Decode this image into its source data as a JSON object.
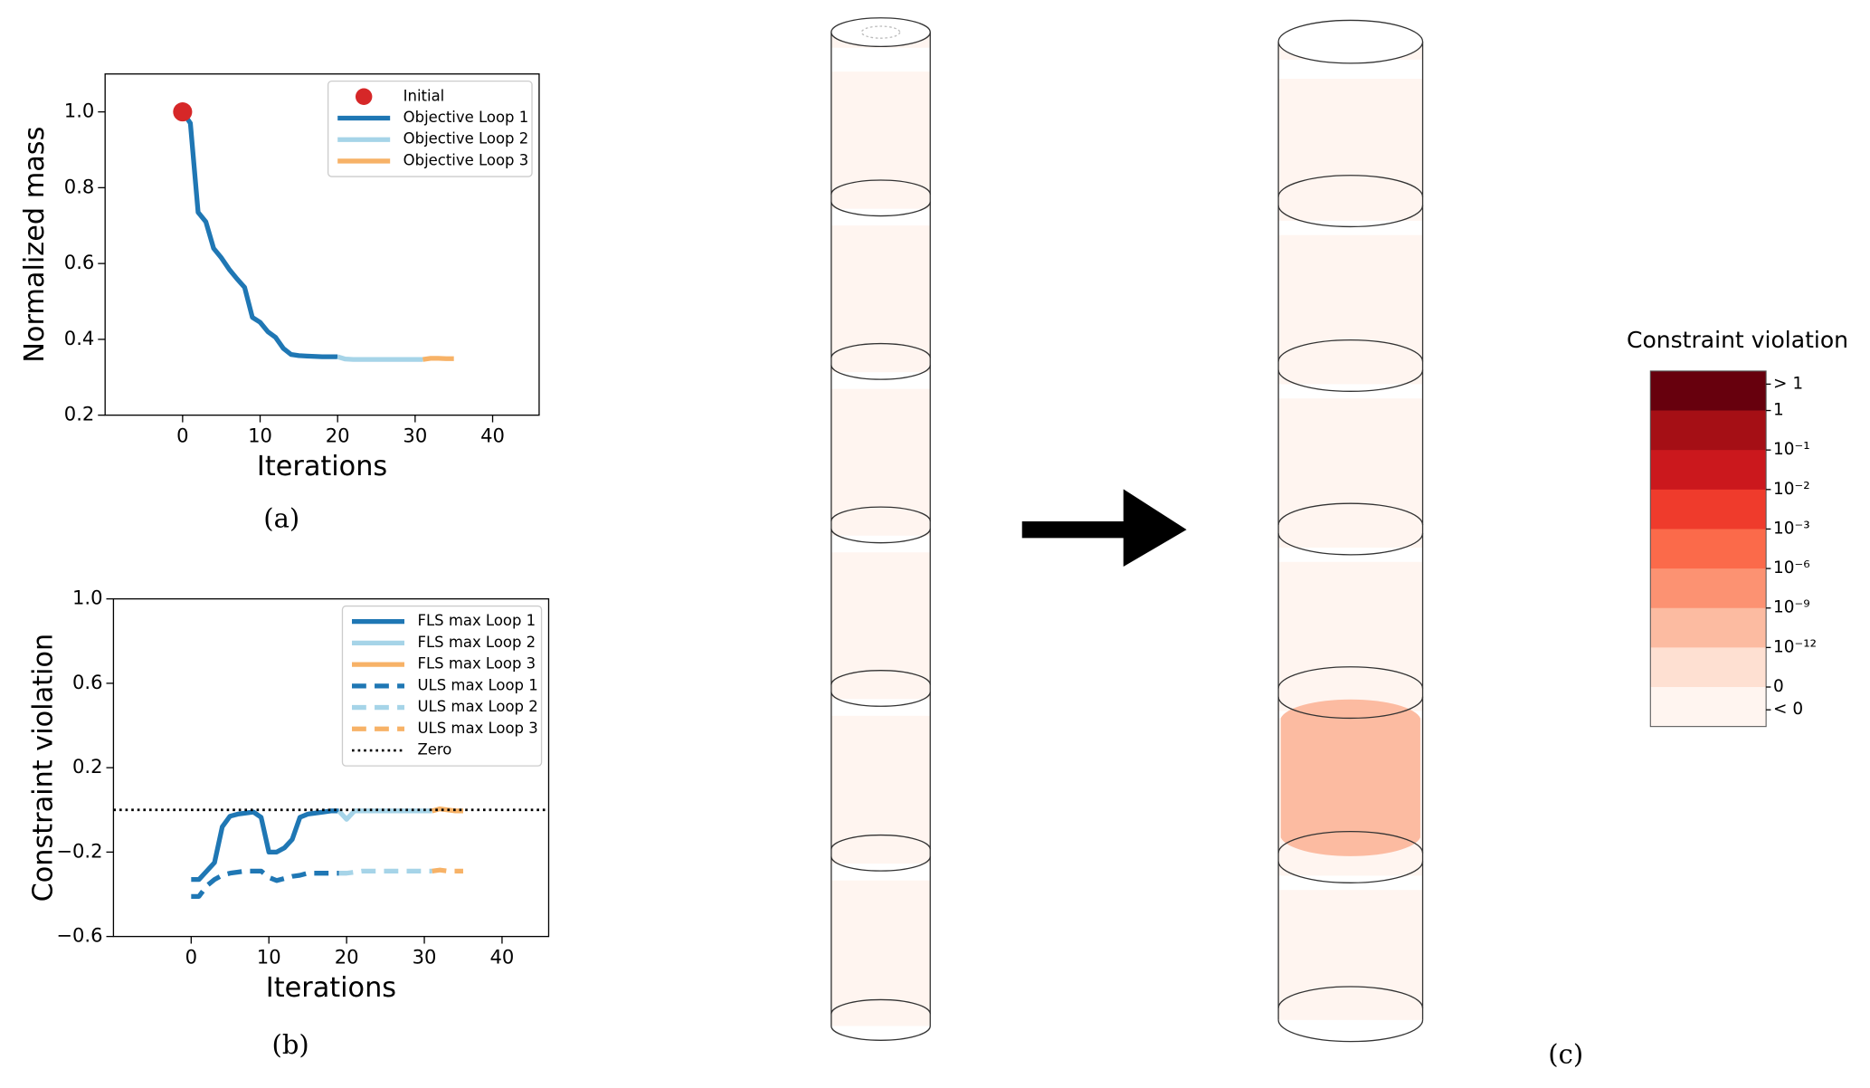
{
  "chart_data": [
    {
      "type": "line",
      "caption": "(a)",
      "xlabel": "Iterations",
      "ylabel": "Normalized mass",
      "xlim": [
        -10,
        46
      ],
      "xticks": [
        0,
        10,
        20,
        30,
        40
      ],
      "ylim": [
        0.2,
        1.1
      ],
      "yticks": [
        0.2,
        0.4,
        0.6,
        0.8,
        {
          "value": 1,
          "label": "1.0"
        }
      ],
      "legend": "upper right",
      "series": [
        {
          "name": "Initial",
          "type": "scatter",
          "color": "#d62728",
          "x": [
            0
          ],
          "values": [
            1
          ]
        },
        {
          "name": "Objective Loop 1",
          "color": "#1f77b4",
          "linestyle": "solid",
          "x": [
            0,
            1,
            2,
            3,
            4,
            5,
            6,
            7,
            8,
            9,
            10,
            11,
            12,
            13,
            14,
            15,
            16,
            17,
            18,
            19,
            20
          ],
          "values": [
            1,
            0.97,
            0.735,
            0.71,
            0.64,
            0.615,
            0.585,
            0.56,
            0.537,
            0.458,
            0.445,
            0.42,
            0.405,
            0.376,
            0.36,
            0.357,
            0.356,
            0.355,
            0.354,
            0.354,
            0.354
          ]
        },
        {
          "name": "Objective Loop 2",
          "color": "#a6d4e8",
          "linestyle": "solid",
          "x": [
            20,
            21,
            22,
            23,
            24,
            25,
            26,
            27,
            28,
            29,
            30,
            31
          ],
          "values": [
            0.354,
            0.348,
            0.347,
            0.347,
            0.347,
            0.347,
            0.347,
            0.347,
            0.347,
            0.347,
            0.347,
            0.347
          ]
        },
        {
          "name": "Objective Loop 3",
          "color": "#f7b267",
          "linestyle": "solid",
          "x": [
            31,
            32,
            33,
            34,
            35
          ],
          "values": [
            0.347,
            0.35,
            0.35,
            0.349,
            0.349
          ]
        }
      ]
    },
    {
      "type": "line",
      "caption": "(b)",
      "xlabel": "Iterations",
      "ylabel": "Constraint violation",
      "xlim": [
        -10,
        46
      ],
      "xticks": [
        0,
        10,
        20,
        30,
        40
      ],
      "ylim": [
        -0.6,
        1
      ],
      "yticks": [
        {
          "value": -0.6,
          "label": "−0.6"
        },
        {
          "value": -0.2,
          "label": "−0.2"
        },
        0.2,
        0.6,
        {
          "value": 1,
          "label": "1.0"
        }
      ],
      "legend": "upper right",
      "series": [
        {
          "name": "FLS max Loop 1",
          "color": "#1f77b4",
          "linestyle": "solid",
          "x": [
            0,
            1,
            2,
            3,
            4,
            5,
            6,
            7,
            8,
            9,
            10,
            11,
            12,
            13,
            14,
            15,
            16,
            17,
            18,
            19
          ],
          "values": [
            -0.33,
            -0.33,
            -0.29,
            -0.25,
            -0.08,
            -0.03,
            -0.02,
            -0.015,
            -0.01,
            -0.035,
            -0.2,
            -0.2,
            -0.18,
            -0.14,
            -0.035,
            -0.02,
            -0.015,
            -0.01,
            -0.005,
            -0.005
          ]
        },
        {
          "name": "FLS max Loop 2",
          "color": "#a6d4e8",
          "linestyle": "solid",
          "x": [
            19,
            20,
            21,
            22,
            23,
            24,
            25,
            26,
            27,
            28,
            29,
            30,
            31
          ],
          "values": [
            -0.005,
            -0.045,
            -0.005,
            -0.005,
            -0.005,
            -0.005,
            -0.005,
            -0.005,
            -0.005,
            -0.005,
            -0.005,
            -0.005,
            -0.005
          ]
        },
        {
          "name": "FLS max Loop 3",
          "color": "#f7b267",
          "linestyle": "solid",
          "x": [
            31,
            32,
            33,
            34,
            35
          ],
          "values": [
            -0.005,
            0.005,
            0,
            -0.005,
            -0.005
          ]
        },
        {
          "name": "ULS max Loop 1",
          "color": "#1f77b4",
          "linestyle": "dashed",
          "x": [
            0,
            1,
            2,
            3,
            4,
            5,
            6,
            7,
            8,
            9,
            10,
            11,
            12,
            13,
            14,
            15,
            16,
            17,
            18,
            19
          ],
          "values": [
            -0.41,
            -0.41,
            -0.36,
            -0.33,
            -0.31,
            -0.3,
            -0.295,
            -0.29,
            -0.29,
            -0.29,
            -0.32,
            -0.335,
            -0.325,
            -0.315,
            -0.31,
            -0.3,
            -0.3,
            -0.3,
            -0.3,
            -0.3
          ]
        },
        {
          "name": "ULS max Loop 2",
          "color": "#a6d4e8",
          "linestyle": "dashed",
          "x": [
            19,
            20,
            21,
            22,
            23,
            24,
            25,
            26,
            27,
            28,
            29,
            30,
            31
          ],
          "values": [
            -0.3,
            -0.3,
            -0.295,
            -0.29,
            -0.29,
            -0.29,
            -0.29,
            -0.29,
            -0.29,
            -0.29,
            -0.29,
            -0.29,
            -0.29
          ]
        },
        {
          "name": "ULS max Loop 3",
          "color": "#f7b267",
          "linestyle": "dashed",
          "x": [
            31,
            32,
            33,
            34,
            35
          ],
          "values": [
            -0.29,
            -0.285,
            -0.29,
            -0.29,
            -0.29
          ]
        },
        {
          "name": "Zero",
          "color": "#000000",
          "linestyle": "dotted",
          "x": [
            -10,
            46
          ],
          "values": [
            0,
            0
          ]
        }
      ]
    }
  ],
  "panel_c": {
    "caption": "(c)",
    "colorbar_title": "Constraint violation",
    "colorbar_colors": [
      "#67000d",
      "#a50f15",
      "#cb181d",
      "#ef3b2c",
      "#fb6a4a",
      "#fc9272",
      "#fcbba1",
      "#fee0d2",
      "#fff5f0"
    ],
    "colorbar_labels": [
      "> 1",
      "1",
      "10⁻¹",
      "10⁻²",
      "10⁻³",
      "10⁻⁶",
      "10⁻⁹",
      "10⁻¹²",
      "0",
      "< 0"
    ]
  }
}
